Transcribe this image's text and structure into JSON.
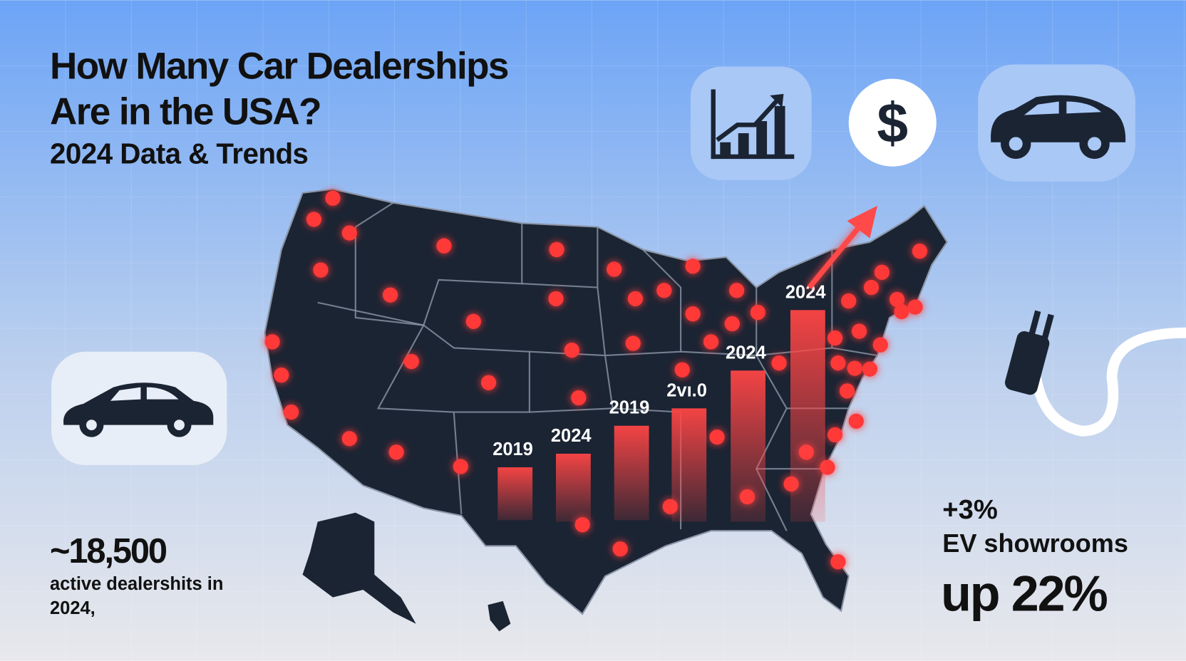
{
  "header": {
    "title_lines": [
      "How Many Car Dealerships",
      "Are in the USA?"
    ],
    "subtitle": "2024 Data & Trends"
  },
  "icons": {
    "dollar": "$"
  },
  "stat": {
    "value": "~18,500",
    "caption_lines": [
      "active dealershits in",
      "2024,"
    ]
  },
  "bar_labels": [
    "2019",
    "2024",
    "2019",
    "2vı.0",
    "2024",
    "2024"
  ],
  "ev": {
    "change": "+3%",
    "label": "EV showrooms",
    "growth": "up 22%"
  }
}
